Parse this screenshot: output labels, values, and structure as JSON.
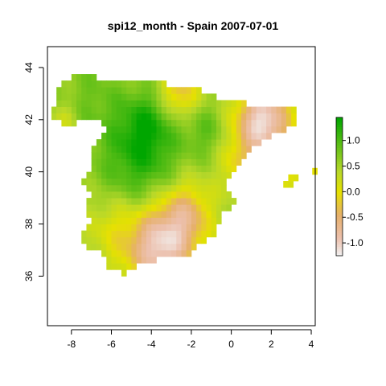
{
  "title": "spi12_month - Spain 2007-07-01",
  "map": {
    "x_axis": {
      "range": [
        -9.2,
        4.2
      ],
      "ticks": [
        -8,
        -6,
        -4,
        -2,
        0,
        2,
        4
      ],
      "tick_labels": [
        "-8",
        "-6",
        "-4",
        "-2",
        "0",
        "2",
        "4"
      ]
    },
    "y_axis": {
      "range": [
        34.1,
        44.8
      ],
      "ticks": [
        36,
        38,
        40,
        42,
        44
      ],
      "tick_labels": [
        "36",
        "38",
        "40",
        "42",
        "44"
      ]
    },
    "variable": "spi12_month",
    "region": "Spain",
    "date": "2007-07-01",
    "raster_cell_deg": 0.25
  },
  "legend": {
    "range": [
      -1.25,
      1.45
    ],
    "ticks": [
      1.0,
      0.5,
      0.0,
      -0.5,
      -1.0
    ],
    "tick_labels": [
      "1.0",
      "0.5",
      "0.0",
      "-0.5",
      "-1.0"
    ],
    "color_stops": [
      {
        "value": -1.25,
        "color": "#f2f2f2"
      },
      {
        "value": -0.9,
        "color": "#ecc0ad"
      },
      {
        "value": -0.45,
        "color": "#e6b06a"
      },
      {
        "value": 0.0,
        "color": "#e6e100"
      },
      {
        "value": 0.4,
        "color": "#b8d82a"
      },
      {
        "value": 0.85,
        "color": "#6ac21a"
      },
      {
        "value": 1.45,
        "color": "#00a600"
      }
    ]
  }
}
